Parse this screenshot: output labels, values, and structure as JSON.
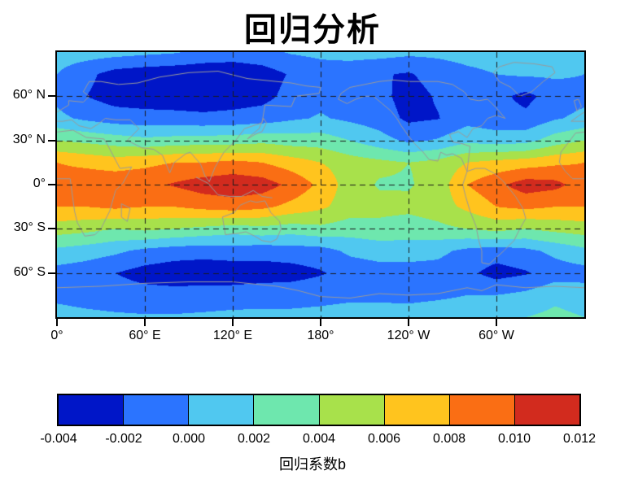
{
  "chart_data": {
    "type": "heatmap",
    "subtype": "filled-contour-world-map",
    "title": "回归分析",
    "x_axis": {
      "range": [
        0,
        360
      ],
      "ticks": [
        {
          "value": 0,
          "label": "0°"
        },
        {
          "value": 60,
          "label": "60° E"
        },
        {
          "value": 120,
          "label": "120° E"
        },
        {
          "value": 180,
          "label": "180°"
        },
        {
          "value": 240,
          "label": "120° W"
        },
        {
          "value": 300,
          "label": "60° W"
        }
      ]
    },
    "y_axis": {
      "range": [
        -90,
        90
      ],
      "ticks": [
        {
          "value": 60,
          "label": "60° N"
        },
        {
          "value": 30,
          "label": "30° N"
        },
        {
          "value": 0,
          "label": "0°"
        },
        {
          "value": -30,
          "label": "30° S"
        },
        {
          "value": -60,
          "label": "60° S"
        }
      ]
    },
    "grid": {
      "lons": [
        0,
        20,
        40,
        60,
        80,
        100,
        120,
        140,
        160,
        180,
        200,
        220,
        240,
        260,
        280,
        300,
        320,
        340,
        360
      ],
      "lats": [
        90,
        75,
        60,
        45,
        30,
        15,
        0,
        -15,
        -30,
        -45,
        -60,
        -75,
        -90
      ],
      "values": [
        [
          0.001,
          0.001,
          0.0008,
          0.0005,
          0.0002,
          -0.0005,
          -0.0008,
          -0.0005,
          0.0002,
          0.0005,
          0.0008,
          0.0008,
          0.0005,
          0.0005,
          0.0008,
          0.001,
          0.001,
          0.001,
          0.001
        ],
        [
          0.0,
          -0.0015,
          -0.0028,
          -0.0032,
          -0.0034,
          -0.0035,
          -0.0035,
          -0.003,
          -0.0018,
          -0.001,
          -0.0012,
          -0.0018,
          -0.0022,
          -0.0012,
          -0.0005,
          0.0,
          0.0003,
          0.0003,
          0.0
        ],
        [
          -0.0005,
          -0.002,
          -0.0029,
          -0.0031,
          -0.0032,
          -0.0033,
          -0.0031,
          -0.0027,
          -0.0013,
          -0.0006,
          -0.0008,
          -0.0014,
          -0.0028,
          -0.0018,
          -0.0006,
          -0.0014,
          -0.0026,
          -0.001,
          -0.0005
        ],
        [
          0.0005,
          -0.0004,
          -0.001,
          -0.0012,
          -0.0013,
          -0.0015,
          -0.0013,
          -0.001,
          -0.0003,
          0.0002,
          -0.0004,
          -0.001,
          -0.0024,
          -0.0021,
          -0.0008,
          -0.0012,
          -0.0015,
          -0.0002,
          0.0005
        ],
        [
          0.004,
          0.0035,
          0.003,
          0.0025,
          0.0028,
          0.003,
          0.003,
          0.0034,
          0.003,
          0.003,
          0.002,
          0.0008,
          -0.0004,
          0.0002,
          0.0015,
          0.001,
          0.0013,
          0.003,
          0.004
        ],
        [
          0.008,
          0.0075,
          0.007,
          0.0075,
          0.008,
          0.008,
          0.0085,
          0.008,
          0.007,
          0.006,
          0.005,
          0.0045,
          0.004,
          0.0046,
          0.006,
          0.0066,
          0.007,
          0.0076,
          0.008
        ],
        [
          0.009,
          0.0094,
          0.0095,
          0.0095,
          0.0102,
          0.011,
          0.0114,
          0.011,
          0.0095,
          0.0075,
          0.005,
          0.0038,
          0.0038,
          0.0048,
          0.008,
          0.0095,
          0.011,
          0.0106,
          0.009
        ],
        [
          0.008,
          0.008,
          0.0084,
          0.008,
          0.008,
          0.0086,
          0.009,
          0.0085,
          0.0074,
          0.0064,
          0.005,
          0.0046,
          0.0045,
          0.005,
          0.0065,
          0.008,
          0.0085,
          0.008,
          0.008
        ],
        [
          0.005,
          0.0046,
          0.004,
          0.0044,
          0.004,
          0.0035,
          0.003,
          0.0034,
          0.003,
          0.0035,
          0.003,
          0.0034,
          0.003,
          0.0035,
          0.004,
          0.0046,
          0.004,
          0.0046,
          0.005
        ],
        [
          0.0015,
          0.001,
          0.0004,
          -0.0005,
          -0.001,
          -0.0012,
          -0.001,
          -0.0012,
          -0.001,
          -0.0008,
          0.0004,
          0.0008,
          0.001,
          0.0005,
          -0.0005,
          -0.001,
          -0.0005,
          0.0005,
          0.0015
        ],
        [
          -0.0008,
          -0.0012,
          -0.002,
          -0.0028,
          -0.0032,
          -0.0033,
          -0.0032,
          -0.003,
          -0.0028,
          -0.0022,
          -0.0012,
          -0.0008,
          -0.001,
          -0.0008,
          -0.0015,
          -0.0028,
          -0.0022,
          -0.001,
          -0.0008
        ],
        [
          -0.0005,
          -0.0008,
          -0.001,
          -0.0012,
          -0.0012,
          -0.001,
          -0.001,
          -0.0008,
          -0.0008,
          -0.0006,
          -0.0004,
          -0.0004,
          -0.0005,
          -0.0003,
          0.0,
          0.0,
          0.0005,
          0.0015,
          0.001
        ],
        [
          0.0008,
          0.0005,
          0.0003,
          0.0002,
          0.0002,
          0.0003,
          0.0005,
          0.0005,
          0.0005,
          0.0006,
          0.0008,
          0.0008,
          0.0008,
          0.001,
          0.001,
          0.0012,
          0.002,
          0.0025,
          0.002
        ]
      ]
    },
    "colorbar": {
      "label": "回归系数b",
      "bounds": [
        -0.004,
        -0.002,
        0.0,
        0.002,
        0.004,
        0.006,
        0.008,
        0.01,
        0.012
      ],
      "tick_labels": [
        "-0.004",
        "-0.002",
        "0.000",
        "0.002",
        "0.004",
        "0.006",
        "0.008",
        "0.010",
        "0.012"
      ],
      "colors": [
        "#0016c8",
        "#2b74ff",
        "#50c8f0",
        "#6ee7ae",
        "#a8e14b",
        "#ffc41e",
        "#fa6e14",
        "#d22b1e"
      ]
    },
    "style": {
      "gridlines": "dashed",
      "grid_color": "#1a1a1a"
    },
    "map": {
      "coastline_color": "#9a9a9a",
      "coastlines": [
        [
          [
            -6,
            35
          ],
          [
            11,
            37
          ],
          [
            20,
            32
          ],
          [
            32,
            31
          ],
          [
            34,
            28
          ],
          [
            43,
            11
          ],
          [
            51,
            12
          ],
          [
            45,
            1
          ],
          [
            40,
            -4
          ],
          [
            36,
            -18
          ],
          [
            30,
            -30
          ],
          [
            26,
            -34
          ],
          [
            19,
            -35
          ],
          [
            14,
            -26
          ],
          [
            12,
            -18
          ],
          [
            9,
            4
          ],
          [
            -8,
            4
          ],
          [
            -13,
            9
          ],
          [
            -17,
            15
          ],
          [
            -16,
            22
          ],
          [
            -9,
            31
          ],
          [
            -6,
            35
          ]
        ],
        [
          [
            -9,
            43
          ],
          [
            -2,
            48
          ],
          [
            3,
            51
          ],
          [
            8,
            54
          ],
          [
            8,
            57
          ],
          [
            18,
            56
          ],
          [
            22,
            60
          ],
          [
            18,
            63
          ],
          [
            22,
            70
          ],
          [
            30,
            70
          ],
          [
            42,
            68
          ],
          [
            55,
            69
          ],
          [
            70,
            73
          ],
          [
            90,
            76
          ],
          [
            110,
            77
          ],
          [
            130,
            72
          ],
          [
            150,
            70
          ],
          [
            160,
            69
          ],
          [
            170,
            67
          ],
          [
            180,
            66
          ],
          [
            179,
            62
          ],
          [
            163,
            60
          ],
          [
            160,
            53
          ],
          [
            142,
            54
          ],
          [
            140,
            42
          ],
          [
            128,
            38
          ],
          [
            122,
            30
          ],
          [
            114,
            22
          ],
          [
            108,
            12
          ],
          [
            104,
            2
          ],
          [
            101,
            6
          ],
          [
            98,
            14
          ],
          [
            91,
            22
          ],
          [
            88,
            21
          ],
          [
            80,
            15
          ],
          [
            77,
            8
          ],
          [
            72,
            20
          ],
          [
            66,
            24
          ],
          [
            58,
            25
          ],
          [
            52,
            28
          ],
          [
            48,
            30
          ],
          [
            56,
            38
          ],
          [
            50,
            44
          ],
          [
            40,
            44
          ],
          [
            33,
            45
          ],
          [
            28,
            41
          ],
          [
            23,
            38
          ],
          [
            15,
            40
          ],
          [
            10,
            44
          ],
          [
            4,
            43
          ],
          [
            -9,
            43
          ]
        ],
        [
          [
            113,
            -22
          ],
          [
            115,
            -34
          ],
          [
            124,
            -33
          ],
          [
            129,
            -32
          ],
          [
            135,
            -35
          ],
          [
            140,
            -38
          ],
          [
            146,
            -39
          ],
          [
            150,
            -37
          ],
          [
            153,
            -30
          ],
          [
            152,
            -25
          ],
          [
            146,
            -19
          ],
          [
            142,
            -11
          ],
          [
            136,
            -12
          ],
          [
            132,
            -11
          ],
          [
            125,
            -14
          ],
          [
            121,
            -19
          ],
          [
            113,
            -22
          ]
        ],
        [
          [
            192,
            58
          ],
          [
            198,
            55
          ],
          [
            204,
            58
          ],
          [
            210,
            60
          ],
          [
            216,
            60
          ],
          [
            222,
            55
          ],
          [
            228,
            50
          ],
          [
            232,
            45
          ],
          [
            235,
            40
          ],
          [
            240,
            33
          ],
          [
            244,
            28
          ],
          [
            250,
            22
          ],
          [
            254,
            17
          ],
          [
            260,
            16
          ],
          [
            262,
            22
          ],
          [
            266,
            20
          ],
          [
            270,
            21
          ],
          [
            276,
            18
          ],
          [
            280,
            9
          ],
          [
            282,
            26
          ],
          [
            276,
            28
          ],
          [
            270,
            29
          ],
          [
            268,
            34
          ],
          [
            274,
            36
          ],
          [
            280,
            32
          ],
          [
            284,
            38
          ],
          [
            290,
            40
          ],
          [
            294,
            45
          ],
          [
            300,
            47
          ],
          [
            306,
            45
          ],
          [
            300,
            52
          ],
          [
            294,
            58
          ],
          [
            288,
            57
          ],
          [
            282,
            58
          ],
          [
            278,
            63
          ],
          [
            270,
            68
          ],
          [
            260,
            70
          ],
          [
            250,
            70
          ],
          [
            240,
            70
          ],
          [
            230,
            71
          ],
          [
            220,
            70
          ],
          [
            210,
            68
          ],
          [
            200,
            66
          ],
          [
            194,
            62
          ],
          [
            192,
            58
          ]
        ],
        [
          [
            280,
            9
          ],
          [
            286,
            11
          ],
          [
            292,
            11
          ],
          [
            298,
            8
          ],
          [
            304,
            3
          ],
          [
            309,
            -3
          ],
          [
            313,
            -8
          ],
          [
            318,
            -16
          ],
          [
            320,
            -23
          ],
          [
            316,
            -30
          ],
          [
            312,
            -38
          ],
          [
            305,
            -45
          ],
          [
            295,
            -54
          ],
          [
            290,
            -53
          ],
          [
            290,
            -45
          ],
          [
            288,
            -38
          ],
          [
            286,
            -28
          ],
          [
            282,
            -18
          ],
          [
            279,
            -8
          ],
          [
            277,
            0
          ],
          [
            280,
            9
          ]
        ],
        [
          [
            316,
            60
          ],
          [
            310,
            66
          ],
          [
            302,
            70
          ],
          [
            298,
            76
          ],
          [
            302,
            80
          ],
          [
            312,
            83
          ],
          [
            326,
            82
          ],
          [
            338,
            80
          ],
          [
            340,
            76
          ],
          [
            332,
            70
          ],
          [
            324,
            63
          ],
          [
            316,
            60
          ]
        ],
        [
          [
            44,
            -13
          ],
          [
            50,
            -16
          ],
          [
            48,
            -25
          ],
          [
            44,
            -22
          ],
          [
            44,
            -13
          ]
        ],
        [
          [
            -5,
            50
          ],
          [
            -2,
            53
          ],
          [
            -4,
            58
          ],
          [
            -7,
            57
          ],
          [
            -5,
            50
          ]
        ],
        [
          [
            130,
            31
          ],
          [
            135,
            34
          ],
          [
            140,
            36
          ],
          [
            143,
            42
          ],
          [
            141,
            45
          ],
          [
            138,
            38
          ],
          [
            132,
            33
          ],
          [
            130,
            31
          ]
        ],
        [
          [
            95,
            5
          ],
          [
            103,
            1
          ],
          [
            110,
            -7
          ],
          [
            118,
            -8
          ],
          [
            126,
            -8
          ],
          [
            134,
            -4
          ],
          [
            140,
            -8
          ],
          [
            147,
            -9
          ]
        ],
        [
          [
            0,
            -70
          ],
          [
            30,
            -69
          ],
          [
            60,
            -67
          ],
          [
            90,
            -66
          ],
          [
            120,
            -66
          ],
          [
            150,
            -69
          ],
          [
            165,
            -72
          ],
          [
            180,
            -76
          ],
          [
            200,
            -77
          ],
          [
            220,
            -74
          ],
          [
            240,
            -75
          ],
          [
            260,
            -74
          ],
          [
            280,
            -70
          ],
          [
            290,
            -72
          ],
          [
            300,
            -68
          ],
          [
            320,
            -70
          ],
          [
            340,
            -69
          ],
          [
            360,
            -70
          ]
        ]
      ]
    }
  }
}
